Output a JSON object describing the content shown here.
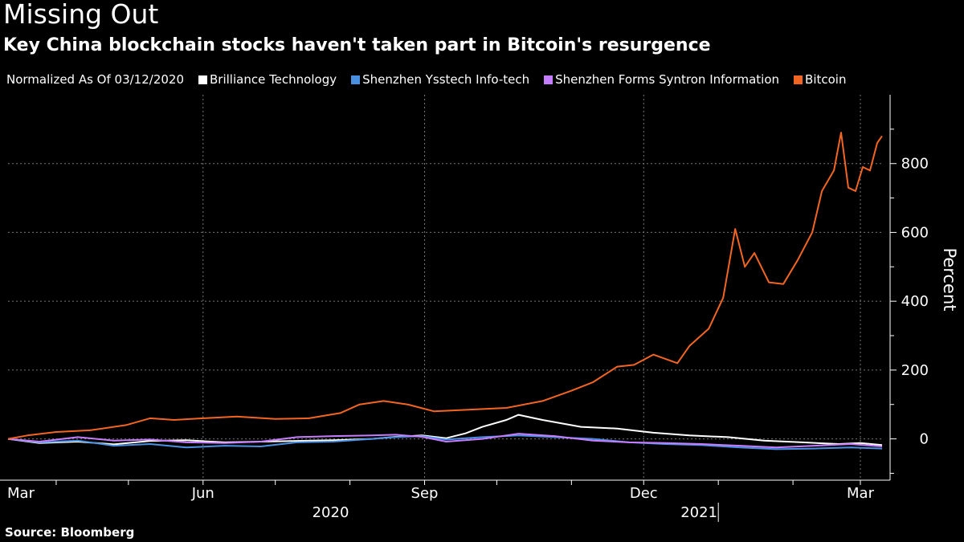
{
  "header": {
    "title": "Missing Out",
    "subtitle": "Key China blockchain stocks haven't taken part in Bitcoin's resurgence"
  },
  "legend": {
    "note": "Normalized As Of 03/12/2020"
  },
  "source": "Source: Bloomberg",
  "chart_data": {
    "type": "line",
    "title": "Missing Out",
    "subtitle": "Key China blockchain stocks haven't taken part in Bitcoin's resurgence",
    "ylabel": "Percent",
    "xlabel": "",
    "ylim": [
      -120,
      1000
    ],
    "yticks": [
      0,
      200,
      400,
      600,
      800
    ],
    "xlim": [
      "2020-03-12",
      "2021-03-10"
    ],
    "xticks": [
      {
        "label": "Mar",
        "date": "2020-03-01"
      },
      {
        "label": "Jun",
        "date": "2020-06-01"
      },
      {
        "label": "Sep",
        "date": "2020-09-01"
      },
      {
        "label": "Dec",
        "date": "2020-12-01"
      },
      {
        "label": "Mar",
        "date": "2021-03-01"
      }
    ],
    "year_labels": [
      {
        "label": "2020",
        "date": "2020-09-01"
      },
      {
        "label": "2021",
        "date": "2021-02-01"
      }
    ],
    "grid": true,
    "legend_position": "top",
    "series": [
      {
        "name": "Brilliance Technology",
        "color": "#ffffff",
        "points": [
          [
            "2020-03-12",
            0
          ],
          [
            "2020-03-25",
            -12
          ],
          [
            "2020-04-10",
            -8
          ],
          [
            "2020-04-25",
            -16
          ],
          [
            "2020-05-10",
            -6
          ],
          [
            "2020-05-25",
            -4
          ],
          [
            "2020-06-10",
            -10
          ],
          [
            "2020-06-25",
            -8
          ],
          [
            "2020-07-10",
            -6
          ],
          [
            "2020-07-25",
            -4
          ],
          [
            "2020-08-10",
            0
          ],
          [
            "2020-08-20",
            6
          ],
          [
            "2020-08-31",
            10
          ],
          [
            "2020-09-10",
            2
          ],
          [
            "2020-09-18",
            16
          ],
          [
            "2020-09-25",
            35
          ],
          [
            "2020-10-05",
            55
          ],
          [
            "2020-10-10",
            70
          ],
          [
            "2020-10-20",
            55
          ],
          [
            "2020-11-05",
            35
          ],
          [
            "2020-11-20",
            30
          ],
          [
            "2020-12-05",
            18
          ],
          [
            "2020-12-20",
            10
          ],
          [
            "2021-01-05",
            5
          ],
          [
            "2021-01-20",
            -5
          ],
          [
            "2021-02-05",
            -10
          ],
          [
            "2021-02-20",
            -15
          ],
          [
            "2021-03-01",
            -12
          ],
          [
            "2021-03-10",
            -18
          ]
        ]
      },
      {
        "name": "Shenzhen Ysstech Info-tech",
        "color": "#4a90e2",
        "points": [
          [
            "2020-03-12",
            0
          ],
          [
            "2020-03-25",
            -10
          ],
          [
            "2020-04-10",
            -5
          ],
          [
            "2020-04-25",
            -20
          ],
          [
            "2020-05-10",
            -15
          ],
          [
            "2020-05-25",
            -25
          ],
          [
            "2020-06-10",
            -20
          ],
          [
            "2020-06-25",
            -22
          ],
          [
            "2020-07-10",
            -10
          ],
          [
            "2020-07-25",
            -8
          ],
          [
            "2020-08-10",
            0
          ],
          [
            "2020-08-20",
            5
          ],
          [
            "2020-08-31",
            8
          ],
          [
            "2020-09-10",
            -2
          ],
          [
            "2020-09-25",
            5
          ],
          [
            "2020-10-10",
            10
          ],
          [
            "2020-10-25",
            5
          ],
          [
            "2020-11-10",
            0
          ],
          [
            "2020-11-25",
            -10
          ],
          [
            "2020-12-10",
            -15
          ],
          [
            "2020-12-25",
            -18
          ],
          [
            "2021-01-10",
            -25
          ],
          [
            "2021-01-25",
            -30
          ],
          [
            "2021-02-10",
            -28
          ],
          [
            "2021-02-25",
            -25
          ],
          [
            "2021-03-10",
            -28
          ]
        ]
      },
      {
        "name": "Shenzhen Forms Syntron Information",
        "color": "#c77dff",
        "points": [
          [
            "2020-03-12",
            0
          ],
          [
            "2020-03-25",
            -8
          ],
          [
            "2020-04-10",
            5
          ],
          [
            "2020-04-25",
            -5
          ],
          [
            "2020-05-10",
            -2
          ],
          [
            "2020-05-25",
            -10
          ],
          [
            "2020-06-10",
            -12
          ],
          [
            "2020-06-25",
            -8
          ],
          [
            "2020-07-10",
            5
          ],
          [
            "2020-07-25",
            8
          ],
          [
            "2020-08-10",
            10
          ],
          [
            "2020-08-20",
            12
          ],
          [
            "2020-08-31",
            6
          ],
          [
            "2020-09-10",
            -8
          ],
          [
            "2020-09-25",
            0
          ],
          [
            "2020-10-10",
            15
          ],
          [
            "2020-10-25",
            8
          ],
          [
            "2020-11-10",
            -5
          ],
          [
            "2020-11-25",
            -10
          ],
          [
            "2020-12-10",
            -12
          ],
          [
            "2020-12-25",
            -15
          ],
          [
            "2021-01-10",
            -20
          ],
          [
            "2021-01-25",
            -25
          ],
          [
            "2021-02-10",
            -20
          ],
          [
            "2021-02-25",
            -15
          ],
          [
            "2021-03-10",
            -22
          ]
        ]
      },
      {
        "name": "Bitcoin",
        "color": "#f26522",
        "points": [
          [
            "2020-03-12",
            0
          ],
          [
            "2020-03-20",
            10
          ],
          [
            "2020-04-01",
            20
          ],
          [
            "2020-04-15",
            25
          ],
          [
            "2020-04-30",
            40
          ],
          [
            "2020-05-10",
            60
          ],
          [
            "2020-05-20",
            55
          ],
          [
            "2020-06-01",
            60
          ],
          [
            "2020-06-15",
            65
          ],
          [
            "2020-07-01",
            58
          ],
          [
            "2020-07-15",
            60
          ],
          [
            "2020-07-28",
            75
          ],
          [
            "2020-08-05",
            100
          ],
          [
            "2020-08-15",
            110
          ],
          [
            "2020-08-25",
            100
          ],
          [
            "2020-09-05",
            80
          ],
          [
            "2020-09-20",
            85
          ],
          [
            "2020-10-05",
            90
          ],
          [
            "2020-10-20",
            110
          ],
          [
            "2020-11-01",
            140
          ],
          [
            "2020-11-10",
            165
          ],
          [
            "2020-11-20",
            210
          ],
          [
            "2020-11-27",
            215
          ],
          [
            "2020-12-05",
            245
          ],
          [
            "2020-12-15",
            220
          ],
          [
            "2020-12-20",
            270
          ],
          [
            "2020-12-28",
            320
          ],
          [
            "2021-01-03",
            410
          ],
          [
            "2021-01-08",
            610
          ],
          [
            "2021-01-12",
            500
          ],
          [
            "2021-01-16",
            540
          ],
          [
            "2021-01-22",
            455
          ],
          [
            "2021-01-28",
            450
          ],
          [
            "2021-02-03",
            520
          ],
          [
            "2021-02-09",
            600
          ],
          [
            "2021-02-13",
            720
          ],
          [
            "2021-02-18",
            780
          ],
          [
            "2021-02-21",
            890
          ],
          [
            "2021-02-24",
            730
          ],
          [
            "2021-02-27",
            720
          ],
          [
            "2021-03-02",
            790
          ],
          [
            "2021-03-05",
            780
          ],
          [
            "2021-03-08",
            860
          ],
          [
            "2021-03-10",
            880
          ]
        ]
      }
    ]
  }
}
